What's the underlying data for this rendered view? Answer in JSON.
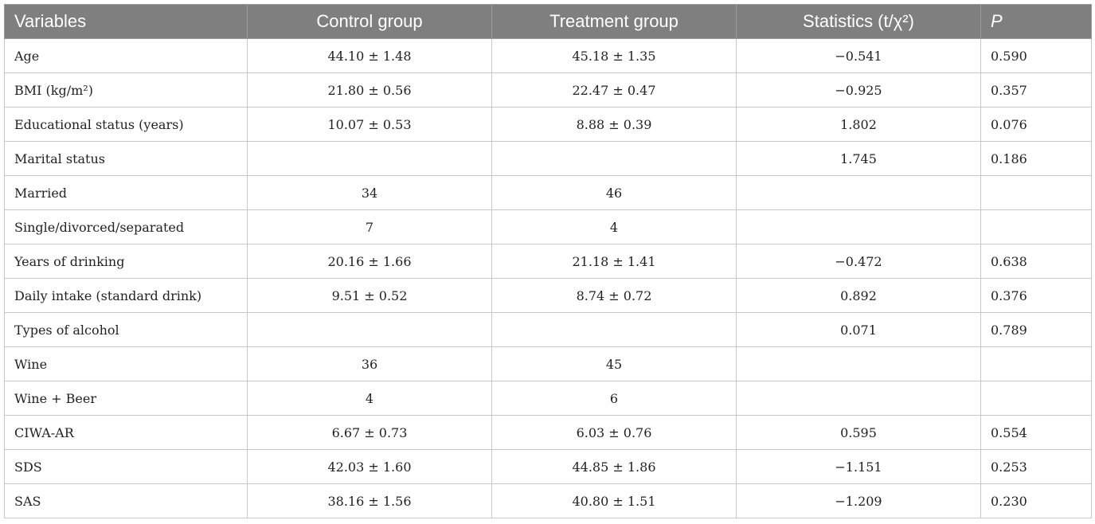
{
  "table": {
    "headers": {
      "variables": "Variables",
      "control": "Control group",
      "treatment": "Treatment group",
      "statistics": "Statistics (t/χ²)",
      "p": "P"
    },
    "rows": [
      {
        "variable": "Age",
        "control": "44.10 ± 1.48",
        "treatment": "45.18 ± 1.35",
        "statistic": "−0.541",
        "p": "0.590"
      },
      {
        "variable": "BMI (kg/m²)",
        "control": "21.80 ± 0.56",
        "treatment": "22.47 ± 0.47",
        "statistic": "−0.925",
        "p": "0.357"
      },
      {
        "variable": "Educational status (years)",
        "control": "10.07 ± 0.53",
        "treatment": "8.88 ± 0.39",
        "statistic": "1.802",
        "p": "0.076"
      },
      {
        "variable": "Marital status",
        "control": "",
        "treatment": "",
        "statistic": "1.745",
        "p": "0.186"
      },
      {
        "variable": "Married",
        "control": "34",
        "treatment": "46",
        "statistic": "",
        "p": ""
      },
      {
        "variable": "Single/divorced/separated",
        "control": "7",
        "treatment": "4",
        "statistic": "",
        "p": ""
      },
      {
        "variable": "Years of drinking",
        "control": "20.16 ± 1.66",
        "treatment": "21.18 ± 1.41",
        "statistic": "−0.472",
        "p": "0.638"
      },
      {
        "variable": "Daily intake (standard drink)",
        "control": "9.51 ± 0.52",
        "treatment": "8.74 ± 0.72",
        "statistic": "0.892",
        "p": "0.376"
      },
      {
        "variable": "Types of alcohol",
        "control": "",
        "treatment": "",
        "statistic": "0.071",
        "p": "0.789"
      },
      {
        "variable": "Wine",
        "control": "36",
        "treatment": "45",
        "statistic": "",
        "p": ""
      },
      {
        "variable": "Wine + Beer",
        "control": "4",
        "treatment": "6",
        "statistic": "",
        "p": ""
      },
      {
        "variable": "CIWA-AR",
        "control": "6.67 ± 0.73",
        "treatment": "6.03 ± 0.76",
        "statistic": "0.595",
        "p": "0.554"
      },
      {
        "variable": "SDS",
        "control": "42.03 ± 1.60",
        "treatment": "44.85 ± 1.86",
        "statistic": "−1.151",
        "p": "0.253"
      },
      {
        "variable": "SAS",
        "control": "38.16 ± 1.56",
        "treatment": "40.80 ± 1.51",
        "statistic": "−1.209",
        "p": "0.230"
      }
    ]
  }
}
